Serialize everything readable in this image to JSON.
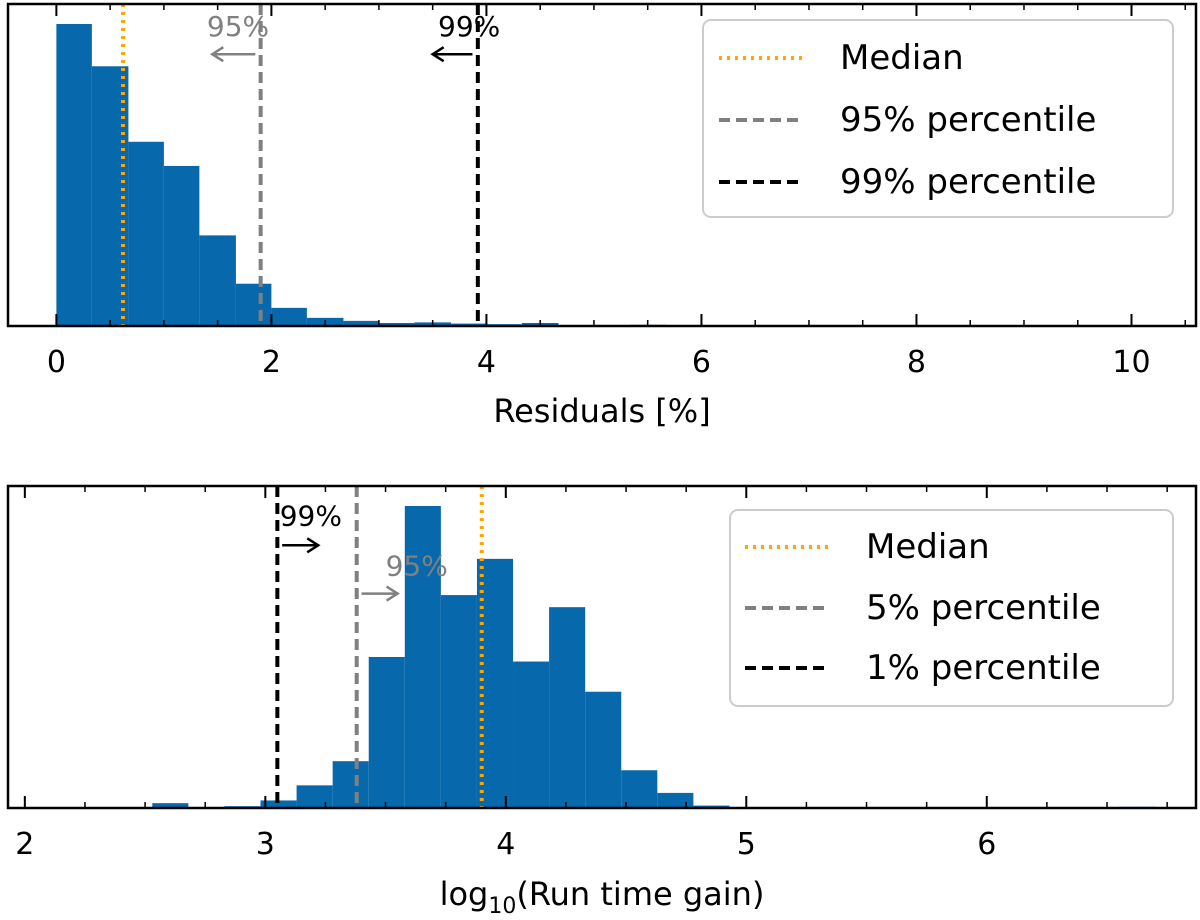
{
  "chart_data": [
    {
      "type": "histogram",
      "xlabel": "Residuals [%]",
      "xlim": [
        -0.45,
        10.6
      ],
      "ylim": [
        0,
        1.0
      ],
      "yticks_shown": false,
      "xticks": [
        0,
        2,
        4,
        6,
        8,
        10
      ],
      "xtick_labels": [
        "0",
        "2",
        "4",
        "6",
        "8",
        "10"
      ],
      "bar_color": "#0868ac",
      "bins": [
        {
          "x0": 0.0,
          "x1": 0.33,
          "h": 1.0
        },
        {
          "x0": 0.33,
          "x1": 0.67,
          "h": 0.86
        },
        {
          "x0": 0.67,
          "x1": 1.0,
          "h": 0.61
        },
        {
          "x0": 1.0,
          "x1": 1.33,
          "h": 0.53
        },
        {
          "x0": 1.33,
          "x1": 1.67,
          "h": 0.3
        },
        {
          "x0": 1.67,
          "x1": 2.0,
          "h": 0.14
        },
        {
          "x0": 2.0,
          "x1": 2.33,
          "h": 0.06
        },
        {
          "x0": 2.33,
          "x1": 2.67,
          "h": 0.027
        },
        {
          "x0": 2.67,
          "x1": 3.0,
          "h": 0.017
        },
        {
          "x0": 3.0,
          "x1": 3.33,
          "h": 0.01
        },
        {
          "x0": 3.33,
          "x1": 3.67,
          "h": 0.012
        },
        {
          "x0": 3.67,
          "x1": 4.0,
          "h": 0.008
        },
        {
          "x0": 4.0,
          "x1": 4.33,
          "h": 0.006
        },
        {
          "x0": 4.33,
          "x1": 4.67,
          "h": 0.01
        },
        {
          "x0": 5.33,
          "x1": 5.67,
          "h": 0.004
        }
      ],
      "vlines": [
        {
          "name": "median",
          "x": 0.62,
          "color": "#ffa500",
          "style": "dotted"
        },
        {
          "name": "p95",
          "x": 1.9,
          "color": "#808080",
          "style": "dashed"
        },
        {
          "name": "p99",
          "x": 3.92,
          "color": "#000000",
          "style": "dashed"
        }
      ],
      "annotations": [
        {
          "text": "95%",
          "color": "#808080",
          "x_text": 1.4,
          "y": 0.96,
          "arrow_from": 1.85,
          "arrow_to": 1.45,
          "y_arrow": 0.9
        },
        {
          "text": "99%",
          "color": "#000000",
          "x_text": 3.55,
          "y": 0.96,
          "arrow_from": 3.87,
          "arrow_to": 3.5,
          "y_arrow": 0.9
        }
      ],
      "legend": {
        "position": "top-right",
        "entries": [
          {
            "label": "Median",
            "color": "#ffa500",
            "style": "dotted"
          },
          {
            "label": "95% percentile",
            "color": "#808080",
            "style": "dashed"
          },
          {
            "label": "99% percentile",
            "color": "#000000",
            "style": "dashed"
          }
        ]
      }
    },
    {
      "type": "histogram",
      "xlabel_prefix": "log",
      "xlabel_sub": "10",
      "xlabel_suffix": "(Run time gain)",
      "xlim": [
        1.93,
        6.87
      ],
      "ylim": [
        0,
        1.0
      ],
      "yticks_shown": false,
      "xticks": [
        2,
        3,
        4,
        5,
        6
      ],
      "xtick_labels": [
        "2",
        "3",
        "4",
        "5",
        "6"
      ],
      "bar_color": "#0868ac",
      "bins": [
        {
          "x0": 2.53,
          "x1": 2.68,
          "h": 0.016
        },
        {
          "x0": 2.83,
          "x1": 2.98,
          "h": 0.006
        },
        {
          "x0": 2.98,
          "x1": 3.13,
          "h": 0.025
        },
        {
          "x0": 3.13,
          "x1": 3.28,
          "h": 0.075
        },
        {
          "x0": 3.28,
          "x1": 3.43,
          "h": 0.155
        },
        {
          "x0": 3.43,
          "x1": 3.58,
          "h": 0.5
        },
        {
          "x0": 3.58,
          "x1": 3.73,
          "h": 1.0
        },
        {
          "x0": 3.73,
          "x1": 3.88,
          "h": 0.705
        },
        {
          "x0": 3.88,
          "x1": 4.03,
          "h": 0.825
        },
        {
          "x0": 4.03,
          "x1": 4.18,
          "h": 0.485
        },
        {
          "x0": 4.18,
          "x1": 4.33,
          "h": 0.665
        },
        {
          "x0": 4.33,
          "x1": 4.48,
          "h": 0.385
        },
        {
          "x0": 4.48,
          "x1": 4.63,
          "h": 0.125
        },
        {
          "x0": 4.63,
          "x1": 4.78,
          "h": 0.05
        },
        {
          "x0": 4.78,
          "x1": 4.93,
          "h": 0.008
        },
        {
          "x0": 6.55,
          "x1": 6.7,
          "h": 0.004
        }
      ],
      "vlines": [
        {
          "name": "median",
          "x": 3.9,
          "color": "#ffa500",
          "style": "dotted"
        },
        {
          "name": "p5",
          "x": 3.38,
          "color": "#808080",
          "style": "dashed"
        },
        {
          "name": "p1",
          "x": 3.05,
          "color": "#000000",
          "style": "dashed"
        }
      ],
      "annotations": [
        {
          "text": "95%",
          "color": "#808080",
          "x_text": 3.5,
          "y": 0.77,
          "arrow_from": 3.4,
          "arrow_to": 3.55,
          "y_arrow": 0.71
        },
        {
          "text": "99%",
          "color": "#000000",
          "x_text": 3.06,
          "y": 0.935,
          "arrow_from": 3.07,
          "arrow_to": 3.22,
          "y_arrow": 0.87
        }
      ],
      "legend": {
        "position": "top-right",
        "entries": [
          {
            "label": "Median",
            "color": "#ffa500",
            "style": "dotted"
          },
          {
            "label": "5% percentile",
            "color": "#808080",
            "style": "dashed"
          },
          {
            "label": "1% percentile",
            "color": "#000000",
            "style": "dashed"
          }
        ]
      }
    }
  ]
}
